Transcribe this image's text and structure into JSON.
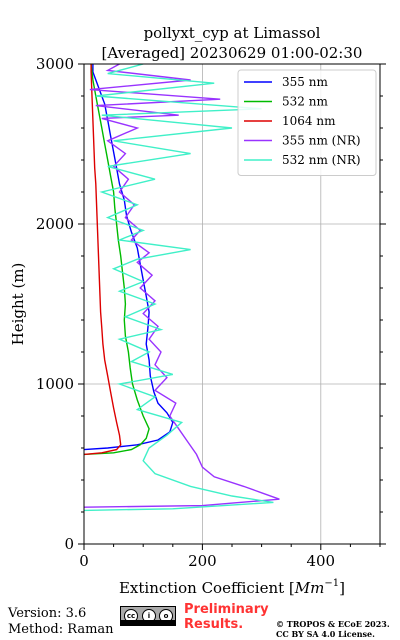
{
  "chart_data": {
    "type": "line",
    "title_line1": "pollyxt_cyp at Limassol",
    "title_line2": "[Averaged] 20230629 01:00-02:30",
    "xlabel": "Extinction Coefficient [$Mm^{-1}$]",
    "xlabel_text": "Extinction Coefficient [",
    "xlabel_unit": "Mm",
    "xlabel_sup": "−1",
    "xlabel_close": "]",
    "ylabel": "Height (m)",
    "xlim": [
      0,
      500
    ],
    "ylim": [
      0,
      3000
    ],
    "xticks": [
      0,
      200,
      400
    ],
    "xtick_labels": [
      "0",
      "200",
      "400"
    ],
    "yticks": [
      0,
      1000,
      2000,
      3000
    ],
    "ytick_labels": [
      "0",
      "1000",
      "2000",
      "3000"
    ],
    "grid": true,
    "legend_position": "top-right",
    "series": [
      {
        "name": "355 nm",
        "color": "#0000ff",
        "points": [
          [
            0,
            590
          ],
          [
            40,
            600
          ],
          [
            90,
            620
          ],
          [
            125,
            650
          ],
          [
            145,
            700
          ],
          [
            150,
            760
          ],
          [
            140,
            820
          ],
          [
            125,
            880
          ],
          [
            118,
            950
          ],
          [
            112,
            1050
          ],
          [
            110,
            1150
          ],
          [
            105,
            1250
          ],
          [
            108,
            1350
          ],
          [
            110,
            1450
          ],
          [
            105,
            1550
          ],
          [
            100,
            1650
          ],
          [
            95,
            1750
          ],
          [
            90,
            1850
          ],
          [
            80,
            1950
          ],
          [
            72,
            2050
          ],
          [
            68,
            2150
          ],
          [
            60,
            2250
          ],
          [
            55,
            2350
          ],
          [
            50,
            2450
          ],
          [
            45,
            2550
          ],
          [
            40,
            2650
          ],
          [
            35,
            2750
          ],
          [
            25,
            2850
          ],
          [
            15,
            2950
          ],
          [
            15,
            3000
          ]
        ]
      },
      {
        "name": "532 nm",
        "color": "#00bb00",
        "points": [
          [
            0,
            560
          ],
          [
            50,
            570
          ],
          [
            80,
            590
          ],
          [
            95,
            620
          ],
          [
            105,
            660
          ],
          [
            110,
            720
          ],
          [
            100,
            800
          ],
          [
            90,
            900
          ],
          [
            82,
            1000
          ],
          [
            78,
            1100
          ],
          [
            75,
            1200
          ],
          [
            70,
            1300
          ],
          [
            68,
            1400
          ],
          [
            70,
            1500
          ],
          [
            68,
            1600
          ],
          [
            65,
            1700
          ],
          [
            62,
            1800
          ],
          [
            58,
            1900
          ],
          [
            55,
            2000
          ],
          [
            52,
            2100
          ],
          [
            50,
            2200
          ],
          [
            45,
            2300
          ],
          [
            40,
            2400
          ],
          [
            35,
            2500
          ],
          [
            30,
            2600
          ],
          [
            25,
            2700
          ],
          [
            20,
            2800
          ],
          [
            15,
            2900
          ],
          [
            12,
            3000
          ]
        ]
      },
      {
        "name": "1064 nm",
        "color": "#dd0000",
        "points": [
          [
            0,
            560
          ],
          [
            30,
            570
          ],
          [
            55,
            590
          ],
          [
            62,
            620
          ],
          [
            60,
            680
          ],
          [
            55,
            760
          ],
          [
            50,
            850
          ],
          [
            45,
            950
          ],
          [
            40,
            1050
          ],
          [
            35,
            1150
          ],
          [
            32,
            1250
          ],
          [
            30,
            1350
          ],
          [
            28,
            1450
          ],
          [
            27,
            1550
          ],
          [
            26,
            1650
          ],
          [
            25,
            1750
          ],
          [
            24,
            1850
          ],
          [
            23,
            1950
          ],
          [
            22,
            2050
          ],
          [
            21,
            2150
          ],
          [
            20,
            2250
          ],
          [
            18,
            2350
          ],
          [
            17,
            2450
          ],
          [
            16,
            2550
          ],
          [
            15,
            2650
          ],
          [
            14,
            2750
          ],
          [
            13,
            2850
          ],
          [
            12,
            2950
          ],
          [
            12,
            3000
          ]
        ]
      },
      {
        "name": "355 nm (NR)",
        "color": "#9933ff",
        "points": [
          [
            0,
            230
          ],
          [
            200,
            240
          ],
          [
            330,
            280
          ],
          [
            300,
            320
          ],
          [
            270,
            360
          ],
          [
            220,
            420
          ],
          [
            200,
            480
          ],
          [
            190,
            560
          ],
          [
            175,
            640
          ],
          [
            160,
            720
          ],
          [
            145,
            800
          ],
          [
            155,
            880
          ],
          [
            120,
            960
          ],
          [
            140,
            1040
          ],
          [
            120,
            1120
          ],
          [
            130,
            1200
          ],
          [
            110,
            1280
          ],
          [
            125,
            1360
          ],
          [
            100,
            1440
          ],
          [
            120,
            1520
          ],
          [
            95,
            1600
          ],
          [
            115,
            1680
          ],
          [
            90,
            1760
          ],
          [
            110,
            1820
          ],
          [
            80,
            1900
          ],
          [
            95,
            1960
          ],
          [
            70,
            2040
          ],
          [
            85,
            2120
          ],
          [
            60,
            2200
          ],
          [
            75,
            2280
          ],
          [
            50,
            2360
          ],
          [
            70,
            2440
          ],
          [
            40,
            2520
          ],
          [
            90,
            2600
          ],
          [
            30,
            2660
          ],
          [
            160,
            2680
          ],
          [
            20,
            2740
          ],
          [
            230,
            2780
          ],
          [
            10,
            2840
          ],
          [
            180,
            2900
          ],
          [
            40,
            2960
          ],
          [
            60,
            3000
          ]
        ]
      },
      {
        "name": "532 nm (NR)",
        "color": "#40f0c8",
        "points": [
          [
            0,
            210
          ],
          [
            150,
            220
          ],
          [
            320,
            260
          ],
          [
            250,
            300
          ],
          [
            180,
            360
          ],
          [
            120,
            440
          ],
          [
            100,
            520
          ],
          [
            110,
            600
          ],
          [
            140,
            680
          ],
          [
            165,
            760
          ],
          [
            90,
            840
          ],
          [
            120,
            920
          ],
          [
            60,
            1000
          ],
          [
            150,
            1060
          ],
          [
            80,
            1140
          ],
          [
            110,
            1200
          ],
          [
            60,
            1280
          ],
          [
            130,
            1340
          ],
          [
            70,
            1420
          ],
          [
            120,
            1500
          ],
          [
            60,
            1580
          ],
          [
            100,
            1640
          ],
          [
            50,
            1720
          ],
          [
            90,
            1780
          ],
          [
            180,
            1840
          ],
          [
            60,
            1900
          ],
          [
            100,
            1960
          ],
          [
            40,
            2040
          ],
          [
            90,
            2120
          ],
          [
            30,
            2200
          ],
          [
            120,
            2280
          ],
          [
            40,
            2360
          ],
          [
            180,
            2440
          ],
          [
            50,
            2520
          ],
          [
            250,
            2600
          ],
          [
            30,
            2680
          ],
          [
            300,
            2720
          ],
          [
            20,
            2800
          ],
          [
            220,
            2880
          ],
          [
            40,
            2940
          ],
          [
            100,
            3000
          ]
        ]
      }
    ]
  },
  "footer": {
    "version": "Version: 3.6",
    "method": "Method: Raman",
    "preliminary_line1": "Preliminary",
    "preliminary_line2": "Results.",
    "copyright_line1": "© TROPOS & ECoE 2023.",
    "copyright_line2": "CC BY SA 4.0 License.",
    "cc_badge_label": "cc by sa"
  }
}
